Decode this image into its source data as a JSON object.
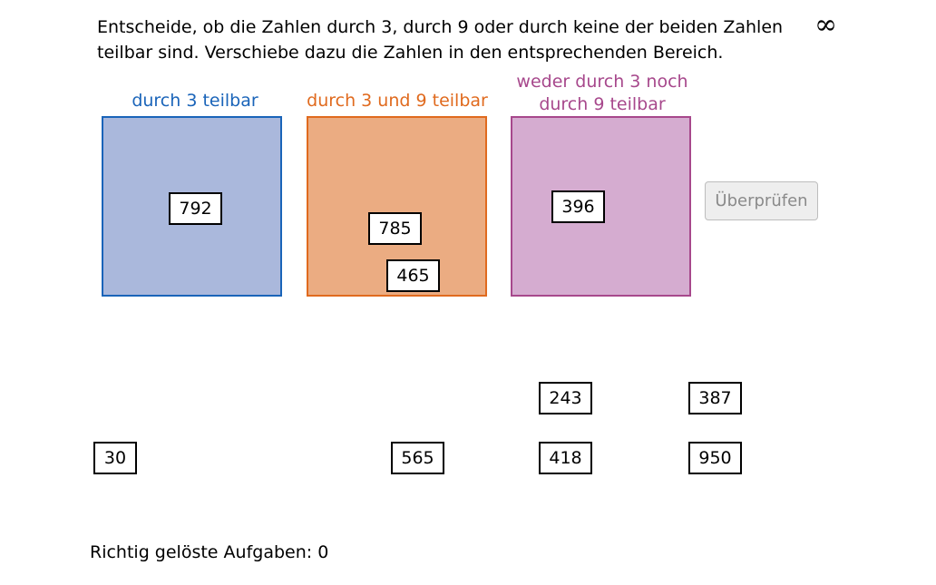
{
  "task": {
    "instruction": "Entscheide, ob die Zahlen durch 3, durch 9 oder durch keine der beiden Zahlen teilbar sind. Verschiebe dazu die Zahlen in den entsprechenden Bereich.",
    "infinity_symbol": "∞"
  },
  "zones": [
    {
      "label": "durch 3 teilbar",
      "color": "#1a64b9",
      "fill": "#aab8dc"
    },
    {
      "label": "durch 3 und 9 teilbar",
      "color": "#e06a1e",
      "fill": "#ebac82"
    },
    {
      "label": "weder durch 3 noch durch 9 teilbar",
      "color": "#a7488c",
      "fill": "#d5acd0"
    }
  ],
  "tiles": [
    "792",
    "785",
    "465",
    "396",
    "243",
    "387",
    "30",
    "565",
    "418",
    "950"
  ],
  "check_button": {
    "label": "Überprüfen"
  },
  "score": {
    "text": "Richtig gelöste Aufgaben: 0"
  }
}
